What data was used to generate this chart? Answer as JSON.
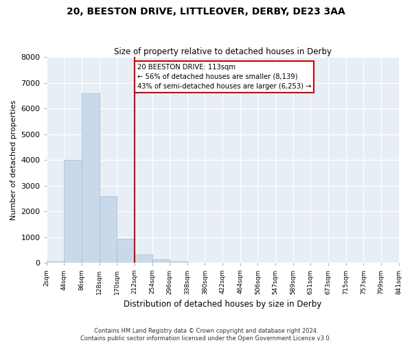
{
  "title": "20, BEESTON DRIVE, LITTLEOVER, DERBY, DE23 3AA",
  "subtitle": "Size of property relative to detached houses in Derby",
  "xlabel": "Distribution of detached houses by size in Derby",
  "ylabel": "Number of detached properties",
  "bin_labels": [
    "2sqm",
    "44sqm",
    "86sqm",
    "128sqm",
    "170sqm",
    "212sqm",
    "254sqm",
    "296sqm",
    "338sqm",
    "380sqm",
    "422sqm",
    "464sqm",
    "506sqm",
    "547sqm",
    "589sqm",
    "631sqm",
    "673sqm",
    "715sqm",
    "757sqm",
    "799sqm",
    "841sqm"
  ],
  "bar_values": [
    50,
    4000,
    6600,
    2600,
    950,
    320,
    130,
    50,
    0,
    0,
    0,
    0,
    0,
    0,
    0,
    0,
    0,
    0,
    0,
    0
  ],
  "bar_color": "#c9d9eb",
  "bar_edge_color": "#a0bcd4",
  "ylim": [
    0,
    8000
  ],
  "yticks": [
    0,
    1000,
    2000,
    3000,
    4000,
    5000,
    6000,
    7000,
    8000
  ],
  "property_line_x": 5,
  "property_line_color": "#cc0000",
  "annotation_title": "20 BEESTON DRIVE: 113sqm",
  "annotation_line1": "← 56% of detached houses are smaller (8,139)",
  "annotation_line2": "43% of semi-detached houses are larger (6,253) →",
  "annotation_box_color": "#cc0000",
  "footnote1": "Contains HM Land Registry data © Crown copyright and database right 2024.",
  "footnote2": "Contains public sector information licensed under the Open Government Licence v3.0.",
  "background_color": "#e8eef5",
  "n_bins": 20,
  "bar_width": 1.0
}
